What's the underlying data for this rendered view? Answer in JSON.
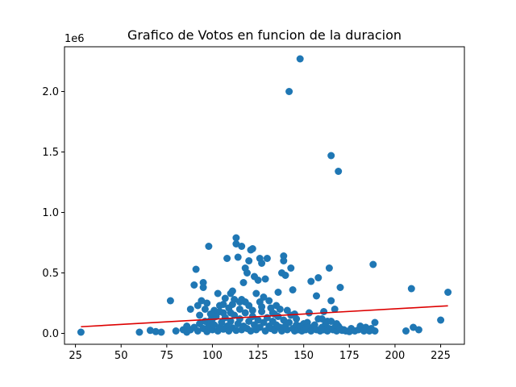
{
  "chart_data": {
    "type": "scatter",
    "title": "Grafico de Votos en funcion de la duracion",
    "xlabel": "",
    "ylabel": "",
    "y_offset_label": "1e6",
    "xlim": [
      19,
      238
    ],
    "ylim": [
      -90000,
      2370000
    ],
    "x_ticks": [
      25,
      50,
      75,
      100,
      125,
      150,
      175,
      200,
      225
    ],
    "y_ticks": [
      0,
      500000,
      1000000,
      1500000,
      2000000
    ],
    "y_tick_labels": [
      "0.0",
      "0.5",
      "1.0",
      "1.5",
      "2.0"
    ],
    "grid": false,
    "colors": {
      "points": "#1f77b4",
      "trend": "#dd0000"
    },
    "trend_line": {
      "x": [
        28,
        229
      ],
      "y": [
        55000,
        228000
      ]
    },
    "points": [
      [
        28,
        10000
      ],
      [
        60,
        10000
      ],
      [
        66,
        25000
      ],
      [
        69,
        15000
      ],
      [
        72,
        10000
      ],
      [
        77,
        270000
      ],
      [
        80,
        20000
      ],
      [
        84,
        30000
      ],
      [
        86,
        60000
      ],
      [
        88,
        200000
      ],
      [
        90,
        400000
      ],
      [
        91,
        530000
      ],
      [
        92,
        230000
      ],
      [
        94,
        270000
      ],
      [
        95,
        380000
      ],
      [
        95,
        420000
      ],
      [
        97,
        250000
      ],
      [
        98,
        720000
      ],
      [
        100,
        120000
      ],
      [
        101,
        190000
      ],
      [
        103,
        330000
      ],
      [
        104,
        230000
      ],
      [
        106,
        170000
      ],
      [
        107,
        290000
      ],
      [
        108,
        620000
      ],
      [
        110,
        330000
      ],
      [
        111,
        350000
      ],
      [
        112,
        280000
      ],
      [
        113,
        740000
      ],
      [
        113,
        790000
      ],
      [
        114,
        630000
      ],
      [
        115,
        200000
      ],
      [
        116,
        720000
      ],
      [
        116,
        280000
      ],
      [
        117,
        420000
      ],
      [
        118,
        540000
      ],
      [
        119,
        500000
      ],
      [
        120,
        600000
      ],
      [
        121,
        690000
      ],
      [
        122,
        700000
      ],
      [
        123,
        470000
      ],
      [
        124,
        330000
      ],
      [
        125,
        440000
      ],
      [
        126,
        620000
      ],
      [
        127,
        580000
      ],
      [
        128,
        300000
      ],
      [
        129,
        450000
      ],
      [
        130,
        620000
      ],
      [
        132,
        210000
      ],
      [
        134,
        160000
      ],
      [
        136,
        340000
      ],
      [
        138,
        500000
      ],
      [
        139,
        640000
      ],
      [
        139,
        600000
      ],
      [
        140,
        480000
      ],
      [
        142,
        2000000
      ],
      [
        143,
        540000
      ],
      [
        144,
        360000
      ],
      [
        146,
        120000
      ],
      [
        148,
        2270000
      ],
      [
        150,
        80000
      ],
      [
        153,
        170000
      ],
      [
        154,
        430000
      ],
      [
        157,
        310000
      ],
      [
        158,
        460000
      ],
      [
        160,
        120000
      ],
      [
        161,
        180000
      ],
      [
        163,
        100000
      ],
      [
        164,
        540000
      ],
      [
        165,
        1470000
      ],
      [
        165,
        270000
      ],
      [
        167,
        200000
      ],
      [
        168,
        80000
      ],
      [
        169,
        1340000
      ],
      [
        170,
        380000
      ],
      [
        172,
        30000
      ],
      [
        176,
        40000
      ],
      [
        181,
        60000
      ],
      [
        184,
        50000
      ],
      [
        187,
        40000
      ],
      [
        188,
        570000
      ],
      [
        189,
        90000
      ],
      [
        189,
        20000
      ],
      [
        206,
        20000
      ],
      [
        209,
        370000
      ],
      [
        210,
        50000
      ],
      [
        213,
        30000
      ],
      [
        225,
        110000
      ],
      [
        229,
        340000
      ],
      [
        86,
        10000
      ],
      [
        88,
        30000
      ],
      [
        90,
        50000
      ],
      [
        92,
        20000
      ],
      [
        93,
        80000
      ],
      [
        95,
        40000
      ],
      [
        96,
        100000
      ],
      [
        97,
        15000
      ],
      [
        98,
        60000
      ],
      [
        99,
        110000
      ],
      [
        100,
        30000
      ],
      [
        101,
        70000
      ],
      [
        102,
        140000
      ],
      [
        103,
        20000
      ],
      [
        104,
        50000
      ],
      [
        105,
        90000
      ],
      [
        106,
        35000
      ],
      [
        107,
        130000
      ],
      [
        108,
        60000
      ],
      [
        109,
        20000
      ],
      [
        110,
        100000
      ],
      [
        111,
        45000
      ],
      [
        112,
        150000
      ],
      [
        113,
        25000
      ],
      [
        114,
        80000
      ],
      [
        115,
        120000
      ],
      [
        116,
        30000
      ],
      [
        117,
        60000
      ],
      [
        118,
        170000
      ],
      [
        119,
        40000
      ],
      [
        120,
        100000
      ],
      [
        121,
        20000
      ],
      [
        122,
        140000
      ],
      [
        123,
        70000
      ],
      [
        124,
        30000
      ],
      [
        125,
        110000
      ],
      [
        126,
        50000
      ],
      [
        127,
        180000
      ],
      [
        128,
        90000
      ],
      [
        129,
        20000
      ],
      [
        130,
        130000
      ],
      [
        131,
        60000
      ],
      [
        132,
        40000
      ],
      [
        133,
        100000
      ],
      [
        134,
        25000
      ],
      [
        135,
        70000
      ],
      [
        136,
        140000
      ],
      [
        137,
        50000
      ],
      [
        138,
        20000
      ],
      [
        139,
        110000
      ],
      [
        140,
        60000
      ],
      [
        141,
        30000
      ],
      [
        142,
        90000
      ],
      [
        143,
        150000
      ],
      [
        144,
        40000
      ],
      [
        145,
        20000
      ],
      [
        146,
        70000
      ],
      [
        147,
        30000
      ],
      [
        148,
        60000
      ],
      [
        149,
        20000
      ],
      [
        150,
        40000
      ],
      [
        151,
        30000
      ],
      [
        152,
        90000
      ],
      [
        153,
        50000
      ],
      [
        154,
        20000
      ],
      [
        155,
        40000
      ],
      [
        156,
        70000
      ],
      [
        157,
        30000
      ],
      [
        158,
        120000
      ],
      [
        159,
        20000
      ],
      [
        160,
        50000
      ],
      [
        161,
        30000
      ],
      [
        162,
        80000
      ],
      [
        163,
        20000
      ],
      [
        164,
        40000
      ],
      [
        165,
        100000
      ],
      [
        166,
        30000
      ],
      [
        167,
        50000
      ],
      [
        168,
        20000
      ],
      [
        169,
        60000
      ],
      [
        170,
        40000
      ],
      [
        171,
        25000
      ],
      [
        173,
        20000
      ],
      [
        175,
        15000
      ],
      [
        178,
        20000
      ],
      [
        180,
        30000
      ],
      [
        183,
        20000
      ],
      [
        186,
        20000
      ],
      [
        120,
        230000
      ],
      [
        118,
        260000
      ],
      [
        126,
        260000
      ],
      [
        131,
        270000
      ],
      [
        111,
        240000
      ],
      [
        109,
        210000
      ],
      [
        104,
        180000
      ],
      [
        99,
        160000
      ],
      [
        96,
        200000
      ],
      [
        93,
        150000
      ],
      [
        135,
        230000
      ],
      [
        137,
        200000
      ],
      [
        133,
        170000
      ],
      [
        141,
        190000
      ],
      [
        145,
        160000
      ],
      [
        127,
        220000
      ],
      [
        122,
        190000
      ],
      [
        115,
        260000
      ],
      [
        106,
        240000
      ],
      [
        110,
        170000
      ]
    ]
  }
}
